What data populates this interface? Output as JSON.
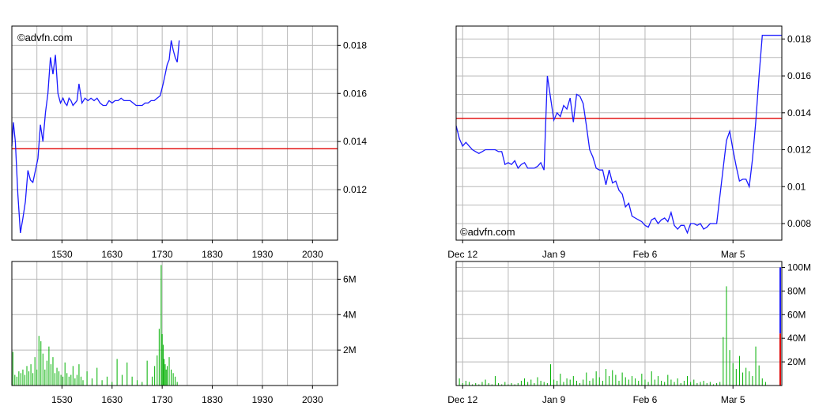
{
  "watermark": "©advfn.com",
  "colors": {
    "price": "#1a1aff",
    "reference": "#e00000",
    "volume": "#00b000",
    "grid": "#b8b8b8",
    "frame": "#000000"
  },
  "chart_data": [
    {
      "id": "intraday-price",
      "type": "line",
      "x_ticks": [
        {
          "label": "1530",
          "t": 15.5
        },
        {
          "label": "1630",
          "t": 16.5
        },
        {
          "label": "1730",
          "t": 17.5
        },
        {
          "label": "1830",
          "t": 18.5
        },
        {
          "label": "1930",
          "t": 19.5
        },
        {
          "label": "2030",
          "t": 20.5
        }
      ],
      "xlim": [
        14.5,
        21.0
      ],
      "y_ticks": [
        {
          "label": "0.012",
          "v": 0.012
        },
        {
          "label": "0.014",
          "v": 0.014
        },
        {
          "label": "0.016",
          "v": 0.016
        },
        {
          "label": "0.018",
          "v": 0.018
        }
      ],
      "ylim": [
        0.0099,
        0.0188
      ],
      "reference_line": 0.0137,
      "x": [
        14.5,
        14.53,
        14.57,
        14.62,
        14.67,
        14.72,
        14.77,
        14.82,
        14.87,
        14.92,
        14.97,
        15.02,
        15.07,
        15.12,
        15.17,
        15.22,
        15.27,
        15.32,
        15.37,
        15.42,
        15.47,
        15.52,
        15.56,
        15.6,
        15.64,
        15.68,
        15.72,
        15.76,
        15.8,
        15.84,
        15.9,
        15.96,
        16.02,
        16.08,
        16.14,
        16.2,
        16.26,
        16.32,
        16.38,
        16.44,
        16.5,
        16.56,
        16.62,
        16.68,
        16.74,
        16.8,
        16.86,
        16.92,
        16.98,
        17.04,
        17.1,
        17.16,
        17.22,
        17.28,
        17.34,
        17.4,
        17.46,
        17.52,
        17.56,
        17.6,
        17.64,
        17.68,
        17.72,
        17.76,
        17.8,
        17.84
      ],
      "y": [
        0.0138,
        0.0148,
        0.014,
        0.0118,
        0.0102,
        0.0108,
        0.0115,
        0.0128,
        0.0124,
        0.0123,
        0.0128,
        0.0133,
        0.0147,
        0.014,
        0.0152,
        0.016,
        0.0175,
        0.0168,
        0.0176,
        0.016,
        0.0156,
        0.0158,
        0.0156,
        0.0155,
        0.0158,
        0.0157,
        0.0155,
        0.0156,
        0.0157,
        0.0164,
        0.0156,
        0.0158,
        0.0157,
        0.0158,
        0.0157,
        0.0158,
        0.0156,
        0.0155,
        0.0155,
        0.0157,
        0.0156,
        0.0157,
        0.0157,
        0.0158,
        0.0157,
        0.0157,
        0.0157,
        0.0156,
        0.0155,
        0.0155,
        0.0155,
        0.0156,
        0.0156,
        0.0157,
        0.0157,
        0.0158,
        0.0159,
        0.0164,
        0.0168,
        0.0172,
        0.0174,
        0.0182,
        0.0178,
        0.0175,
        0.0173,
        0.0182
      ]
    },
    {
      "id": "intraday-volume",
      "type": "bar",
      "xlim": [
        14.5,
        21.0
      ],
      "y_ticks": [
        {
          "label": "2M",
          "v": 2000000
        },
        {
          "label": "4M",
          "v": 4000000
        },
        {
          "label": "6M",
          "v": 6000000
        }
      ],
      "ylim": [
        0,
        7000000
      ],
      "x": [
        14.52,
        14.56,
        14.6,
        14.64,
        14.68,
        14.72,
        14.76,
        14.8,
        14.84,
        14.88,
        14.92,
        14.96,
        15.0,
        15.04,
        15.08,
        15.12,
        15.16,
        15.2,
        15.24,
        15.28,
        15.32,
        15.36,
        15.4,
        15.44,
        15.48,
        15.52,
        15.56,
        15.6,
        15.64,
        15.68,
        15.72,
        15.76,
        15.8,
        15.84,
        15.88,
        15.92,
        16.0,
        16.1,
        16.2,
        16.3,
        16.4,
        16.5,
        16.6,
        16.7,
        16.8,
        16.9,
        17.0,
        17.1,
        17.2,
        17.3,
        17.35,
        17.4,
        17.44,
        17.48,
        17.5,
        17.52,
        17.54,
        17.56,
        17.58,
        17.6,
        17.64,
        17.68,
        17.72,
        17.76,
        17.8
      ],
      "values": [
        1900000,
        600000,
        500000,
        800000,
        700000,
        900000,
        600000,
        1100000,
        800000,
        1200000,
        700000,
        1600000,
        900000,
        2800000,
        2500000,
        1800000,
        900000,
        1400000,
        2200000,
        1200000,
        1600000,
        700000,
        1000000,
        800000,
        600000,
        500000,
        1300000,
        700000,
        500000,
        600000,
        1100000,
        400000,
        600000,
        1200000,
        500000,
        300000,
        800000,
        400000,
        1000000,
        300000,
        500000,
        200000,
        1500000,
        600000,
        1300000,
        500000,
        300000,
        200000,
        1400000,
        500000,
        1100000,
        1700000,
        3200000,
        6800000,
        2900000,
        2300000,
        1500000,
        1200000,
        900000,
        1100000,
        1600000,
        900000,
        700000,
        500000,
        200000
      ]
    },
    {
      "id": "daily-price",
      "type": "line",
      "x_ticks": [
        {
          "label": "Dec 12",
          "d": 2
        },
        {
          "label": "Jan 9",
          "d": 30
        },
        {
          "label": "Feb 6",
          "d": 58
        },
        {
          "label": "Mar 5",
          "d": 85
        }
      ],
      "xlim": [
        0,
        100
      ],
      "y_ticks": [
        {
          "label": "0.008",
          "v": 0.008
        },
        {
          "label": "0.01",
          "v": 0.01
        },
        {
          "label": "0.012",
          "v": 0.012
        },
        {
          "label": "0.014",
          "v": 0.014
        },
        {
          "label": "0.016",
          "v": 0.016
        },
        {
          "label": "0.018",
          "v": 0.018
        }
      ],
      "ylim": [
        0.0071,
        0.0187
      ],
      "reference_line": 0.0137,
      "x": [
        0,
        1,
        2,
        3,
        4,
        5,
        6,
        7,
        8,
        9,
        10,
        11,
        12,
        13,
        14,
        15,
        16,
        17,
        18,
        19,
        20,
        21,
        22,
        23,
        24,
        25,
        26,
        27,
        28,
        29,
        30,
        31,
        32,
        33,
        34,
        35,
        36,
        37,
        38,
        39,
        40,
        41,
        42,
        43,
        44,
        45,
        46,
        47,
        48,
        49,
        50,
        51,
        52,
        53,
        54,
        55,
        56,
        57,
        58,
        59,
        60,
        61,
        62,
        63,
        64,
        65,
        66,
        67,
        68,
        69,
        70,
        71,
        72,
        73,
        74,
        75,
        76,
        77,
        78,
        79,
        80,
        81,
        82,
        83,
        84,
        85,
        86,
        87,
        88,
        89,
        90,
        91,
        92,
        93,
        94,
        95,
        96,
        97,
        98,
        99,
        100
      ],
      "y": [
        0.0133,
        0.0126,
        0.0122,
        0.0124,
        0.0122,
        0.012,
        0.0119,
        0.0118,
        0.0119,
        0.012,
        0.012,
        0.012,
        0.012,
        0.0119,
        0.0119,
        0.0112,
        0.0113,
        0.0112,
        0.0114,
        0.011,
        0.0112,
        0.0113,
        0.011,
        0.011,
        0.011,
        0.0111,
        0.0113,
        0.0109,
        0.016,
        0.0148,
        0.0136,
        0.014,
        0.0138,
        0.0144,
        0.0142,
        0.0148,
        0.0135,
        0.015,
        0.0149,
        0.0145,
        0.0133,
        0.012,
        0.0116,
        0.011,
        0.0109,
        0.0109,
        0.0101,
        0.0109,
        0.0102,
        0.0103,
        0.0098,
        0.0096,
        0.0089,
        0.0091,
        0.0084,
        0.0083,
        0.0082,
        0.0081,
        0.0079,
        0.0078,
        0.0082,
        0.0083,
        0.008,
        0.0082,
        0.0083,
        0.0081,
        0.0086,
        0.0079,
        0.0077,
        0.0079,
        0.0079,
        0.0075,
        0.008,
        0.008,
        0.0079,
        0.008,
        0.0077,
        0.0078,
        0.008,
        0.008,
        0.008,
        0.0095,
        0.011,
        0.0125,
        0.013,
        0.012,
        0.0111,
        0.0103,
        0.0104,
        0.0104,
        0.01,
        0.0115,
        0.0135,
        0.016,
        0.0182,
        0.0182,
        0.0182,
        0.0182,
        0.0182,
        0.0182,
        0.0182
      ]
    },
    {
      "id": "daily-volume",
      "type": "bar",
      "xlim": [
        0,
        100
      ],
      "y_ticks": [
        {
          "label": "20M",
          "v": 20000000
        },
        {
          "label": "40M",
          "v": 40000000
        },
        {
          "label": "60M",
          "v": 60000000
        },
        {
          "label": "80M",
          "v": 80000000
        },
        {
          "label": "100M",
          "v": 100000000
        }
      ],
      "ylim": [
        0,
        105000000
      ],
      "x": [
        1,
        2,
        3,
        4,
        5,
        6,
        7,
        8,
        9,
        10,
        11,
        12,
        13,
        14,
        15,
        16,
        17,
        18,
        19,
        20,
        21,
        22,
        23,
        24,
        25,
        26,
        27,
        28,
        29,
        30,
        31,
        32,
        33,
        34,
        35,
        36,
        37,
        38,
        39,
        40,
        41,
        42,
        43,
        44,
        45,
        46,
        47,
        48,
        49,
        50,
        51,
        52,
        53,
        54,
        55,
        56,
        57,
        58,
        59,
        60,
        61,
        62,
        63,
        64,
        65,
        66,
        67,
        68,
        69,
        70,
        71,
        72,
        73,
        74,
        75,
        76,
        77,
        78,
        79,
        80,
        81,
        82,
        83,
        84,
        85,
        86,
        87,
        88,
        89,
        90,
        91,
        92,
        93,
        94,
        95
      ],
      "values": [
        6000000,
        2000000,
        4000000,
        3000000,
        1000000,
        2000000,
        1000000,
        3000000,
        5000000,
        2000000,
        1000000,
        8000000,
        2000000,
        1000000,
        3000000,
        1000000,
        2000000,
        1000000,
        2000000,
        4000000,
        6000000,
        3000000,
        5000000,
        2000000,
        7000000,
        4000000,
        3000000,
        2000000,
        18000000,
        5000000,
        4000000,
        10000000,
        3000000,
        6000000,
        5000000,
        8000000,
        4000000,
        2000000,
        5000000,
        11000000,
        4000000,
        6000000,
        12000000,
        7000000,
        4000000,
        14000000,
        8000000,
        13000000,
        9000000,
        4000000,
        11000000,
        7000000,
        5000000,
        8000000,
        6000000,
        4000000,
        10000000,
        5000000,
        3000000,
        12000000,
        5000000,
        8000000,
        4000000,
        3000000,
        9000000,
        5000000,
        3000000,
        6000000,
        2000000,
        4000000,
        8000000,
        3000000,
        5000000,
        2000000,
        3000000,
        4000000,
        2000000,
        3000000,
        1000000,
        2000000,
        3000000,
        41000000,
        84000000,
        30000000,
        19000000,
        14000000,
        25000000,
        11000000,
        15000000,
        12000000,
        8000000,
        33000000,
        17000000,
        6000000,
        3000000
      ]
    }
  ]
}
